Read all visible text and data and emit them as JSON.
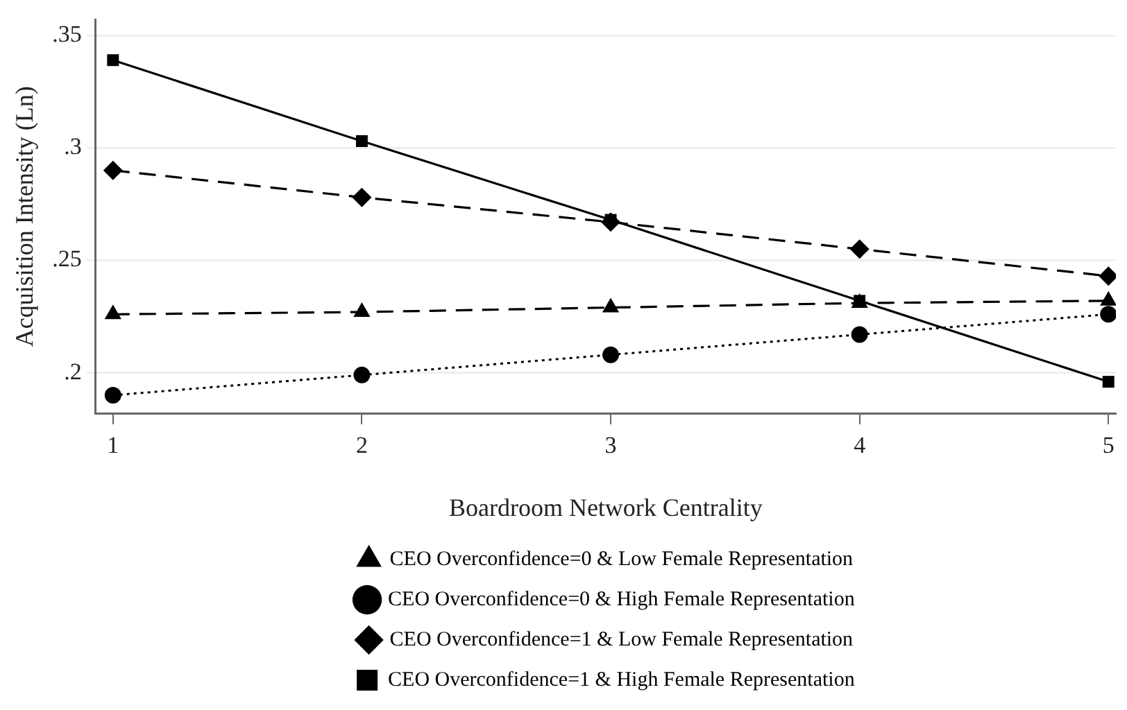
{
  "chart_data": {
    "type": "line",
    "xlabel": "Boardroom Network Centrality",
    "ylabel": "Acquisition Intensity (Ln)",
    "x": [
      1,
      2,
      3,
      4,
      5
    ],
    "xlim": [
      0.93,
      5.03
    ],
    "xticks": [
      1,
      2,
      3,
      4,
      5
    ],
    "ylim": [
      0.182,
      0.357
    ],
    "yticks": [
      {
        "value": 0.2,
        "label": ".2"
      },
      {
        "value": 0.25,
        "label": ".25"
      },
      {
        "value": 0.3,
        "label": ".3"
      },
      {
        "value": 0.35,
        "label": ".35"
      }
    ],
    "grid": "y",
    "legend": "bottom",
    "series": [
      {
        "name": "CEO Overconfidence=0 & Low Female Representation",
        "color": "#000000",
        "marker": "triangle",
        "line_style": "dashed",
        "values": [
          0.226,
          0.227,
          0.229,
          0.231,
          0.232
        ]
      },
      {
        "name": "CEO Overconfidence=0 & High Female Representation",
        "color": "#000000",
        "marker": "circle",
        "line_style": "dotted",
        "values": [
          0.19,
          0.199,
          0.208,
          0.217,
          0.226
        ]
      },
      {
        "name": "CEO Overconfidence=1 & Low Female Representation",
        "color": "#000000",
        "marker": "diamond",
        "line_style": "dashed",
        "values": [
          0.29,
          0.278,
          0.267,
          0.255,
          0.243
        ]
      },
      {
        "name": "CEO Overconfidence=1 & High Female Representation",
        "color": "#000000",
        "marker": "square",
        "line_style": "solid",
        "values": [
          0.339,
          0.303,
          0.268,
          0.232,
          0.196
        ]
      }
    ]
  }
}
